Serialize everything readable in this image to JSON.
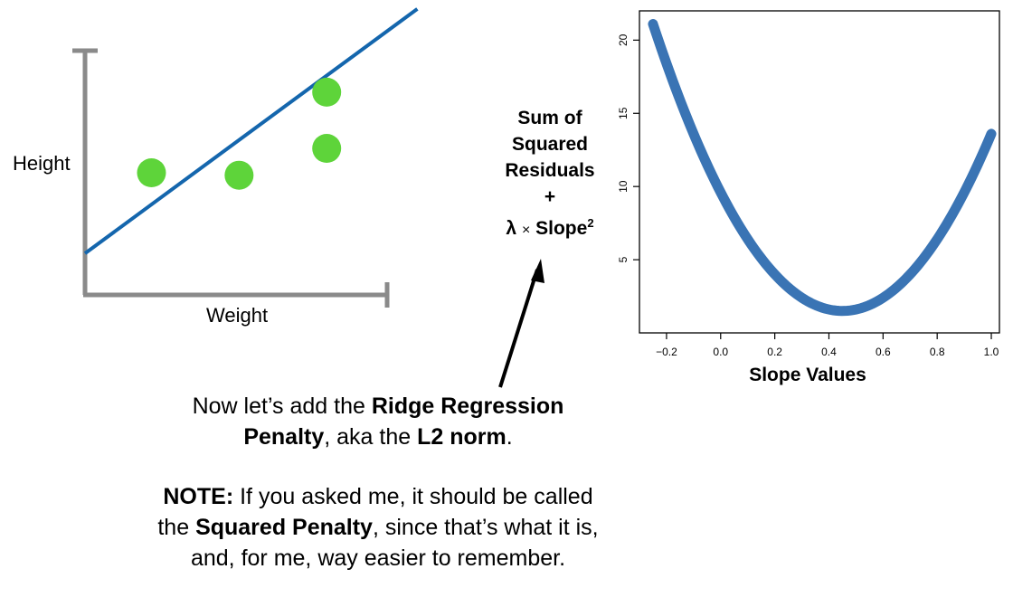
{
  "formula": {
    "line1": "Sum of",
    "line2": "Squared",
    "line3": "Residuals",
    "plus": "+",
    "lambda": "λ",
    "times": "×",
    "slope": "Slope",
    "exponent": "2"
  },
  "caption": {
    "p1_a": "Now let’s add the ",
    "p1_b": "Ridge Regression",
    "p1_c": "Penalty",
    "p1_d": ", aka the ",
    "p1_e": "L2 norm",
    "p1_f": ".",
    "p2_a": "NOTE:",
    "p2_b": " If you asked me, it should be called",
    "p2_c": "the ",
    "p2_d": "Squared Penalty",
    "p2_e": ", since that’s what it is,",
    "p2_f": "and, for me, way easier to remember."
  },
  "colors": {
    "point": "#5ed43a",
    "fit_line": "#1466ad",
    "curve": "#3a74b4",
    "axis_gray": "#8a8a8a"
  },
  "chart_data": [
    {
      "type": "scatter",
      "xlabel": "Weight",
      "ylabel": "Height",
      "grid": false,
      "xlim": [
        0,
        10
      ],
      "ylim": [
        0,
        10
      ],
      "points": [
        {
          "x": 2.2,
          "y": 5.0
        },
        {
          "x": 5.1,
          "y": 4.9
        },
        {
          "x": 8.0,
          "y": 6.0
        },
        {
          "x": 8.0,
          "y": 8.3
        }
      ],
      "fit_line": {
        "intercept": 1.7,
        "slope": 0.91,
        "x": [
          0,
          11
        ]
      }
    },
    {
      "type": "line",
      "xlabel": "Slope Values",
      "ylabel": "",
      "grid": false,
      "xlim": [
        -0.3,
        1.03
      ],
      "ylim": [
        0,
        22
      ],
      "xticks": [
        -0.2,
        0.0,
        0.2,
        0.4,
        0.6,
        0.8,
        1.0
      ],
      "xtick_labels": [
        "−0.2",
        "0.0",
        "0.2",
        "0.4",
        "0.6",
        "0.8",
        "1.0"
      ],
      "yticks": [
        5,
        10,
        15,
        20
      ],
      "ytick_labels": [
        "5",
        "10",
        "15",
        "20"
      ],
      "curve": {
        "x_start": -0.25,
        "x_end": 1.0,
        "vertex_x": 0.45,
        "vertex_y": 1.5,
        "a": 40
      }
    }
  ]
}
